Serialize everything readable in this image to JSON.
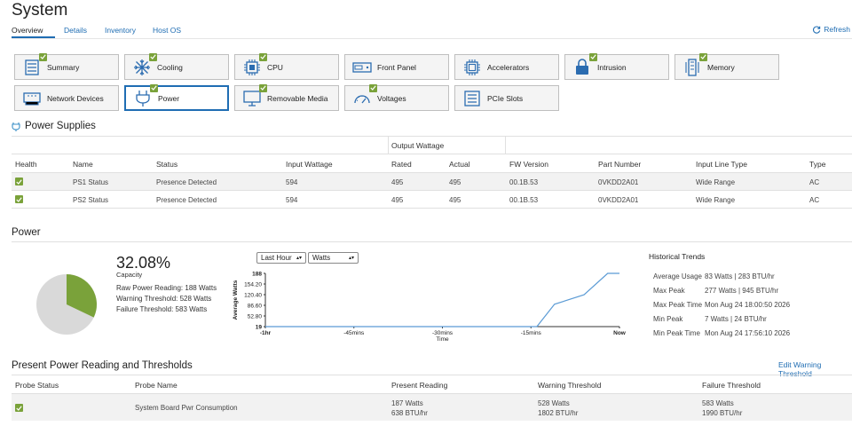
{
  "header": {
    "title": "System",
    "tabs": [
      "Overview",
      "Details",
      "Inventory",
      "Host OS"
    ],
    "refresh_label": "Refresh"
  },
  "tiles": [
    {
      "label": "Summary",
      "icon": "summary-icon",
      "check": true
    },
    {
      "label": "Cooling",
      "icon": "fan-icon",
      "check": true
    },
    {
      "label": "CPU",
      "icon": "cpu-icon",
      "check": true
    },
    {
      "label": "Front Panel",
      "icon": "front-panel-icon",
      "check": false
    },
    {
      "label": "Accelerators",
      "icon": "accelerator-icon",
      "check": false
    },
    {
      "label": "Intrusion",
      "icon": "lock-icon",
      "check": true
    },
    {
      "label": "Memory",
      "icon": "memory-icon",
      "check": true
    },
    {
      "label": "Network Devices",
      "icon": "network-icon",
      "check": false
    },
    {
      "label": "Power",
      "icon": "plug-icon",
      "check": true
    },
    {
      "label": "Removable Media",
      "icon": "removable-media-icon",
      "check": true
    },
    {
      "label": "Voltages",
      "icon": "gauge-icon",
      "check": true
    },
    {
      "label": "PCIe Slots",
      "icon": "pcie-icon",
      "check": false
    }
  ],
  "power_supplies": {
    "title": "Power Supplies",
    "group_header": "Output Wattage",
    "columns": [
      "Health",
      "Name",
      "Status",
      "Input Wattage",
      "Rated",
      "Actual",
      "FW Version",
      "Part Number",
      "Input Line Type",
      "Type"
    ],
    "rows": [
      {
        "name": "PS1 Status",
        "status": "Presence Detected",
        "input": "594",
        "rated": "495",
        "actual": "495",
        "fw": "00.1B.53",
        "part": "0VKDD2A01",
        "line": "Wide Range",
        "type": "AC"
      },
      {
        "name": "PS2 Status",
        "status": "Presence Detected",
        "input": "594",
        "rated": "495",
        "actual": "495",
        "fw": "00.1B.53",
        "part": "0VKDD2A01",
        "line": "Wide Range",
        "type": "AC"
      }
    ]
  },
  "power": {
    "title": "Power",
    "capacity_value": "32.08%",
    "capacity_label": "Capacity",
    "raw_reading": "Raw Power Reading: 188 Watts",
    "warning": "Warning Threshold: 528 Watts",
    "failure": "Failure Threshold: 583 Watts",
    "pie_fraction": 0.3208,
    "colors": {
      "used": "#7aa23a",
      "unused": "#d9d9d9",
      "line": "#5b9bd5"
    },
    "range_select": "Last Hour",
    "unit_select": "Watts"
  },
  "chart_data": {
    "type": "line",
    "ylabel": "Average Watts",
    "xlabel": "Time",
    "y_ticks": [
      "188",
      "154.20",
      "120.40",
      "86.60",
      "52.80",
      "19"
    ],
    "x_ticks": [
      "-1hr",
      "-45mins",
      "-30mins",
      "-15mins",
      "Now"
    ],
    "ylim": [
      19,
      188
    ],
    "series": [
      {
        "x": [
          -60,
          -48,
          -36,
          -24,
          -14,
          -11,
          -6,
          -2,
          0
        ],
        "y": [
          19,
          19,
          19,
          19,
          19,
          90,
          120,
          188,
          188
        ]
      }
    ]
  },
  "trends": {
    "title": "Historical Trends",
    "rows": [
      {
        "label": "Average Usage",
        "value": "83 Watts | 283 BTU/hr"
      },
      {
        "label": "Max Peak",
        "value": "277 Watts | 945 BTU/hr"
      },
      {
        "label": "Max Peak Time",
        "value": "Mon Aug 24 18:00:50 2026"
      },
      {
        "label": "Min Peak",
        "value": "7 Watts | 24 BTU/hr"
      },
      {
        "label": "Min Peak Time",
        "value": "Mon Aug 24 17:56:10 2026"
      }
    ]
  },
  "thresholds": {
    "title": "Present Power Reading and Thresholds",
    "edit_link": "Edit Warning Threshold",
    "columns": [
      "Probe Status",
      "Probe Name",
      "Present Reading",
      "Warning Threshold",
      "Failure Threshold"
    ],
    "row": {
      "name": "System Board Pwr Consumption",
      "present_1": "187 Watts",
      "present_2": "638 BTU/hr",
      "warning_1": "528 Watts",
      "warning_2": "1802 BTU/hr",
      "failure_1": "583 Watts",
      "failure_2": "1990 BTU/hr"
    }
  }
}
